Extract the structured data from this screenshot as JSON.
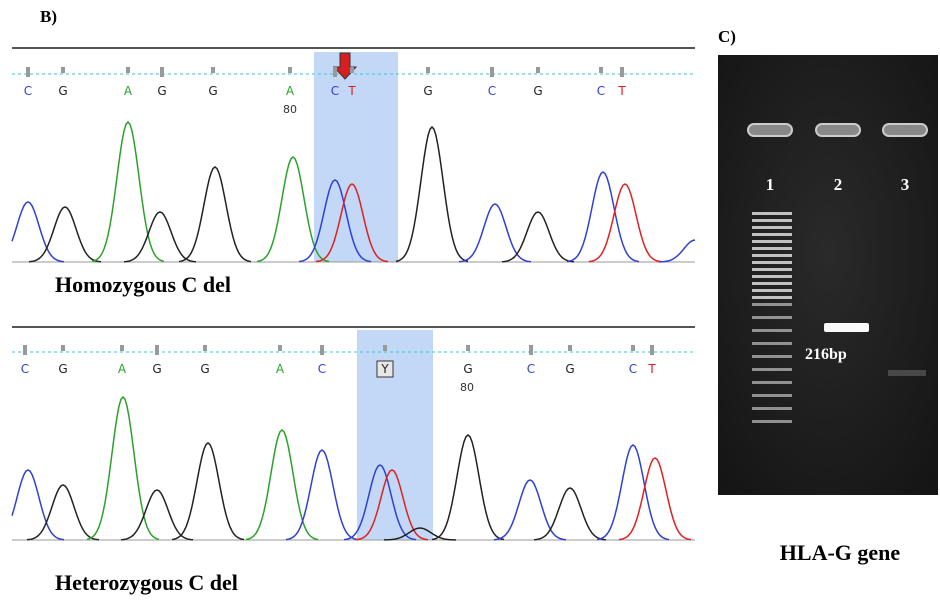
{
  "panel_b_label": "B)",
  "panel_c_label": "C)",
  "chromatograms": [
    {
      "bases": [
        "C",
        "G",
        "A",
        "G",
        "G",
        "A",
        "C",
        "T",
        "G",
        "C",
        "G",
        "C",
        "T"
      ],
      "position_label": "80",
      "caption": "Homozygous C del"
    },
    {
      "bases": [
        "C",
        "G",
        "A",
        "G",
        "G",
        "A",
        "C",
        "Y",
        "G",
        "C",
        "G",
        "C",
        "T"
      ],
      "position_label": "80",
      "caption": "Heterozygous C del"
    }
  ],
  "gel": {
    "lanes": [
      "1",
      "2",
      "3"
    ],
    "band_label": "216bp",
    "caption": "HLA-G gene"
  },
  "base_colors": {
    "A": "#2ca02c",
    "C": "#2f3fd6",
    "G": "#222222",
    "T": "#e02020",
    "Y": "#222222"
  }
}
